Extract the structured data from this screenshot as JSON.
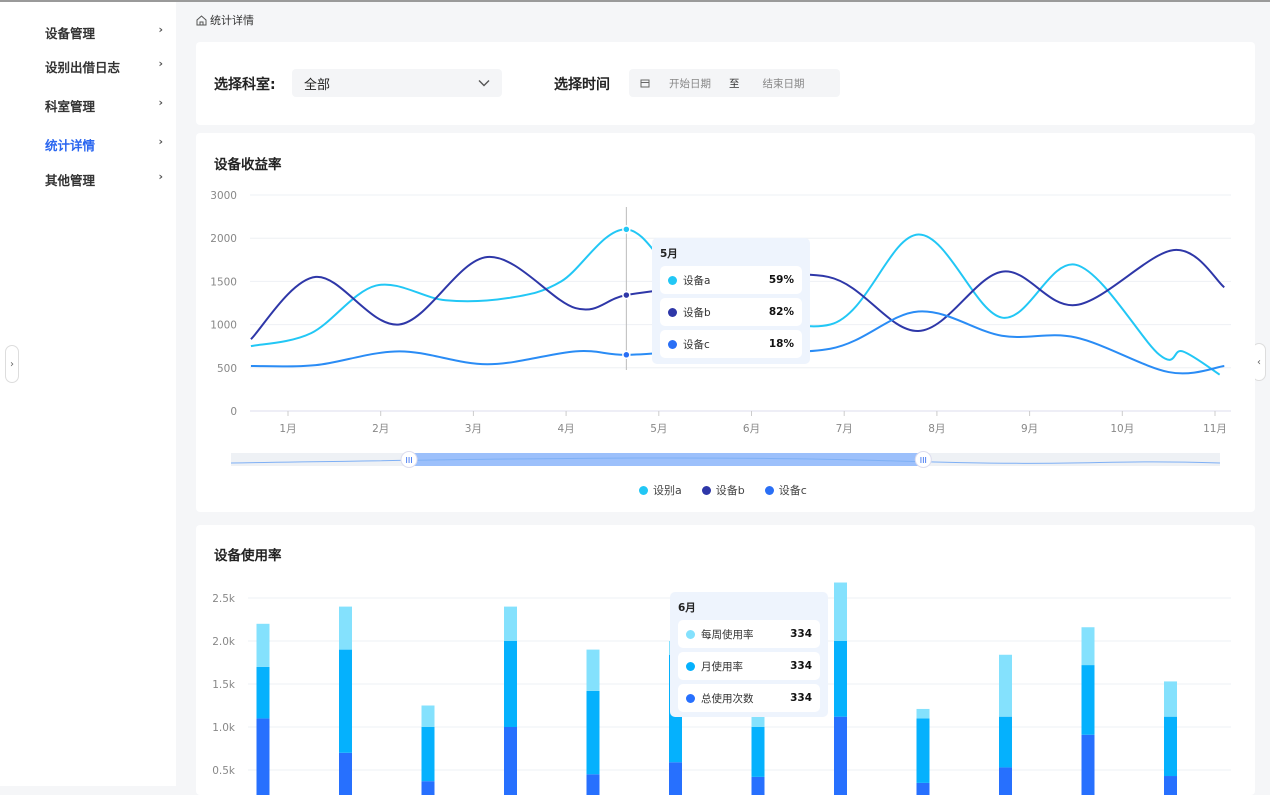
{
  "sidebar": {
    "items": [
      {
        "label": "设备管理",
        "active": false
      },
      {
        "label": "设别出借日志",
        "active": false
      },
      {
        "label": "科室管理",
        "active": false
      },
      {
        "label": "统计详情",
        "active": true
      },
      {
        "label": "其他管理",
        "active": false
      }
    ]
  },
  "breadcrumb": {
    "icon": "home-icon",
    "label": "统计详情"
  },
  "filters": {
    "department_label": "选择科室:",
    "department_value": "全部",
    "time_label": "选择时间",
    "start_placeholder": "开始日期",
    "separator": "至",
    "end_placeholder": "结束日期"
  },
  "colors": {
    "accent": "#2a66f0",
    "a": "#22c7f5",
    "b": "#2e37a8",
    "c": "#2a8cf5",
    "weekly": "#84e1fd",
    "monthly": "#05b1fd",
    "total": "#2770fe"
  },
  "chart_data": [
    {
      "type": "line",
      "title": "设备收益率",
      "x_ticks": [
        "1月",
        "2月",
        "3月",
        "4月",
        "5月",
        "6月",
        "7月",
        "8月",
        "9月",
        "10月",
        "11月"
      ],
      "y_ticks": [
        "0",
        "500",
        "1000",
        "1500",
        "2000",
        "3000"
      ],
      "grid": true,
      "legend_position": "bottom",
      "series": [
        {
          "name": "设别a",
          "points": [
            [
              0.6,
              750
            ],
            [
              1.25,
              900
            ],
            [
              1.95,
              1450
            ],
            [
              2.7,
              1280
            ],
            [
              3.4,
              1310
            ],
            [
              3.95,
              1500
            ],
            [
              4.65,
              2100
            ],
            [
              5.4,
              1400
            ],
            [
              6.85,
              1000
            ],
            [
              7.8,
              2040
            ],
            [
              8.7,
              1080
            ],
            [
              9.5,
              1690
            ],
            [
              10.4,
              650
            ],
            [
              10.65,
              690
            ],
            [
              11.05,
              420
            ]
          ]
        },
        {
          "name": "设备b",
          "points": [
            [
              0.6,
              830
            ],
            [
              1.3,
              1550
            ],
            [
              2.2,
              1000
            ],
            [
              3.15,
              1780
            ],
            [
              4.1,
              1190
            ],
            [
              4.65,
              1340
            ],
            [
              5.5,
              1450
            ],
            [
              6.83,
              1550
            ],
            [
              7.8,
              925
            ],
            [
              8.7,
              1610
            ],
            [
              9.5,
              1225
            ],
            [
              10.55,
              1860
            ],
            [
              11.1,
              1430
            ]
          ]
        },
        {
          "name": "设备c",
          "points": [
            [
              0.6,
              520
            ],
            [
              1.3,
              530
            ],
            [
              2.2,
              690
            ],
            [
              3.15,
              540
            ],
            [
              4.1,
              690
            ],
            [
              4.65,
              650
            ],
            [
              5.5,
              700
            ],
            [
              6.85,
              720
            ],
            [
              7.8,
              1150
            ],
            [
              8.7,
              870
            ],
            [
              9.5,
              850
            ],
            [
              10.5,
              450
            ],
            [
              11.1,
              520
            ]
          ]
        }
      ],
      "tooltip": {
        "title": "5月",
        "rows": [
          {
            "name": "设备a",
            "value": "59%"
          },
          {
            "name": "设备b",
            "value": "82%"
          },
          {
            "name": "设备c",
            "value": "18%"
          }
        ]
      },
      "data_zoom": {
        "start": 0.18,
        "end": 0.7
      }
    },
    {
      "type": "bar",
      "stacked": true,
      "title": "设备使用率",
      "y_ticks": [
        "0.5k",
        "1.0k",
        "1.5k",
        "2.0k",
        "2.5k"
      ],
      "grid": true,
      "series": [
        {
          "name": "总使用次数",
          "values": [
            1100,
            700,
            370,
            1000,
            450,
            590,
            420,
            1120,
            350,
            530,
            910,
            430
          ]
        },
        {
          "name": "月使用率",
          "values": [
            600,
            1200,
            630,
            1000,
            970,
            1250,
            580,
            880,
            750,
            590,
            810,
            690
          ]
        },
        {
          "name": "每周使用率",
          "values": [
            500,
            500,
            250,
            400,
            480,
            160,
            200,
            680,
            110,
            720,
            440,
            410
          ]
        }
      ],
      "tooltip": {
        "title": "6月",
        "rows": [
          {
            "name": "每周使用率",
            "value": "334"
          },
          {
            "name": "月使用率",
            "value": "334"
          },
          {
            "name": "总使用次数",
            "value": "334"
          }
        ]
      }
    }
  ]
}
